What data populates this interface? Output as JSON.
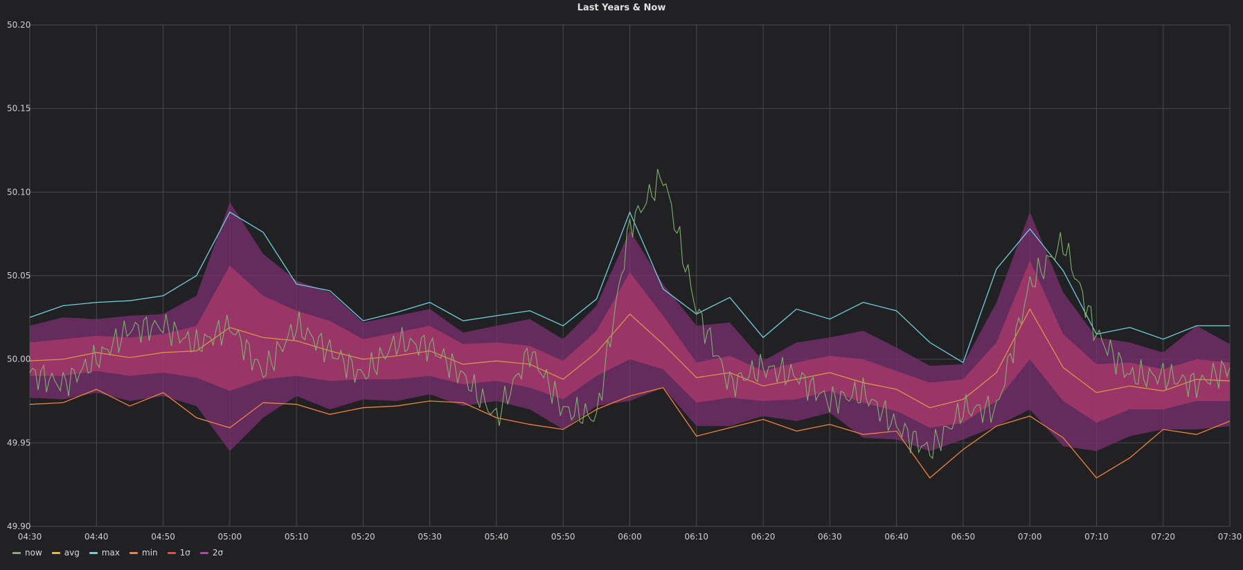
{
  "panel": {
    "title": "Last Years & Now"
  },
  "colors": {
    "background": "#212124",
    "grid": "#4a4a4d",
    "now": "#7eb26d",
    "avg": "#eab839",
    "max": "#6ed0e0",
    "min": "#ef843c",
    "sigma1": "#e24d42",
    "sigma2": "#ba43a9",
    "band2": "#7a3070",
    "band1": "#a8386c",
    "now_overlay": "#b3a3b0"
  },
  "legend": [
    {
      "name": "now",
      "color": "#7eb26d"
    },
    {
      "name": "avg",
      "color": "#eab839"
    },
    {
      "name": "max",
      "color": "#6ed0e0"
    },
    {
      "name": "min",
      "color": "#ef843c"
    },
    {
      "name": "1σ",
      "color": "#e24d42"
    },
    {
      "name": "2σ",
      "color": "#ba43a9"
    }
  ],
  "chart_data": {
    "type": "line",
    "title": "Last Years & Now",
    "xlabel": "",
    "ylabel": "",
    "ylim": [
      49.9,
      50.2
    ],
    "xlim": [
      "04:30",
      "07:30"
    ],
    "y_ticks": [
      "49.90",
      "49.95",
      "50.00",
      "50.05",
      "50.10",
      "50.15",
      "50.20"
    ],
    "x_ticks": [
      "04:30",
      "04:40",
      "04:50",
      "05:00",
      "05:10",
      "05:20",
      "05:30",
      "05:40",
      "05:50",
      "06:00",
      "06:10",
      "06:20",
      "06:30",
      "06:40",
      "06:50",
      "07:00",
      "07:10",
      "07:20",
      "07:30"
    ],
    "grid": true,
    "legend_position": "bottom-left",
    "x": [
      "04:30",
      "04:35",
      "04:40",
      "04:45",
      "04:50",
      "04:55",
      "05:00",
      "05:05",
      "05:10",
      "05:15",
      "05:20",
      "05:25",
      "05:30",
      "05:35",
      "05:40",
      "05:45",
      "05:50",
      "05:55",
      "06:00",
      "06:05",
      "06:10",
      "06:15",
      "06:20",
      "06:25",
      "06:30",
      "06:35",
      "06:40",
      "06:45",
      "06:50",
      "06:55",
      "07:00",
      "07:05",
      "07:10",
      "07:15",
      "07:20",
      "07:25",
      "07:30"
    ],
    "series": [
      {
        "name": "max",
        "values": [
          50.025,
          50.032,
          50.034,
          50.035,
          50.038,
          50.05,
          50.088,
          50.076,
          50.045,
          50.041,
          50.023,
          50.028,
          50.034,
          50.023,
          50.026,
          50.029,
          50.02,
          50.036,
          50.088,
          50.042,
          50.027,
          50.037,
          50.013,
          50.03,
          50.024,
          50.034,
          50.029,
          50.01,
          49.998,
          50.054,
          50.078,
          50.053,
          50.015,
          50.019,
          50.012,
          50.02,
          50.02
        ]
      },
      {
        "name": "avg",
        "values": [
          49.999,
          50.0,
          50.004,
          50.001,
          50.004,
          50.005,
          50.019,
          50.013,
          50.011,
          50.005,
          50.0,
          50.002,
          50.005,
          49.997,
          49.999,
          49.997,
          49.988,
          50.004,
          50.027,
          50.009,
          49.989,
          49.992,
          49.984,
          49.988,
          49.992,
          49.986,
          49.982,
          49.971,
          49.976,
          49.992,
          50.03,
          49.995,
          49.98,
          49.984,
          49.981,
          49.988,
          49.987
        ]
      },
      {
        "name": "min",
        "values": [
          49.973,
          49.974,
          49.982,
          49.972,
          49.98,
          49.965,
          49.959,
          49.974,
          49.973,
          49.967,
          49.971,
          49.972,
          49.975,
          49.974,
          49.965,
          49.961,
          49.958,
          49.97,
          49.978,
          49.983,
          49.954,
          49.959,
          49.964,
          49.957,
          49.961,
          49.955,
          49.957,
          49.929,
          49.946,
          49.96,
          49.966,
          49.953,
          49.929,
          49.941,
          49.958,
          49.955,
          49.963
        ]
      },
      {
        "name": "1σ",
        "values": [
          [
            49.99,
            50.01
          ],
          [
            49.99,
            50.012
          ],
          [
            49.993,
            50.014
          ],
          [
            49.99,
            50.013
          ],
          [
            49.992,
            50.015
          ],
          [
            49.989,
            50.02
          ],
          [
            49.981,
            50.056
          ],
          [
            49.988,
            50.038
          ],
          [
            49.99,
            50.029
          ],
          [
            49.987,
            50.023
          ],
          [
            49.988,
            50.012
          ],
          [
            49.988,
            50.016
          ],
          [
            49.99,
            50.02
          ],
          [
            49.985,
            50.009
          ],
          [
            49.987,
            50.01
          ],
          [
            49.983,
            50.008
          ],
          [
            49.976,
            49.999
          ],
          [
            49.99,
            50.017
          ],
          [
            50.0,
            50.052
          ],
          [
            49.994,
            50.026
          ],
          [
            49.974,
            49.998
          ],
          [
            49.977,
            50.002
          ],
          [
            49.975,
            49.993
          ],
          [
            49.976,
            49.998
          ],
          [
            49.981,
            50.002
          ],
          [
            49.974,
            50.0
          ],
          [
            49.969,
            49.993
          ],
          [
            49.959,
            49.986
          ],
          [
            49.962,
            49.988
          ],
          [
            49.975,
            50.01
          ],
          [
            50.0,
            50.059
          ],
          [
            49.975,
            50.015
          ],
          [
            49.962,
            49.997
          ],
          [
            49.97,
            49.998
          ],
          [
            49.97,
            49.994
          ],
          [
            49.975,
            50.0
          ],
          [
            49.975,
            49.998
          ]
        ]
      },
      {
        "name": "2σ",
        "values": [
          [
            49.977,
            50.02
          ],
          [
            49.976,
            50.025
          ],
          [
            49.98,
            50.024
          ],
          [
            49.975,
            50.026
          ],
          [
            49.978,
            50.027
          ],
          [
            49.972,
            50.038
          ],
          [
            49.945,
            50.094
          ],
          [
            49.965,
            50.063
          ],
          [
            49.978,
            50.047
          ],
          [
            49.97,
            50.04
          ],
          [
            49.976,
            50.022
          ],
          [
            49.975,
            50.026
          ],
          [
            49.979,
            50.03
          ],
          [
            49.972,
            50.016
          ],
          [
            49.975,
            50.02
          ],
          [
            49.97,
            50.024
          ],
          [
            49.958,
            50.012
          ],
          [
            49.972,
            50.032
          ],
          [
            49.975,
            50.077
          ],
          [
            49.983,
            50.045
          ],
          [
            49.96,
            50.02
          ],
          [
            49.96,
            50.022
          ],
          [
            49.966,
            49.999
          ],
          [
            49.963,
            50.01
          ],
          [
            49.968,
            50.013
          ],
          [
            49.953,
            50.017
          ],
          [
            49.952,
            50.007
          ],
          [
            49.945,
            49.996
          ],
          [
            49.952,
            49.997
          ],
          [
            49.96,
            50.034
          ],
          [
            49.97,
            50.088
          ],
          [
            49.948,
            50.04
          ],
          [
            49.945,
            50.013
          ],
          [
            49.954,
            50.01
          ],
          [
            49.958,
            50.004
          ],
          [
            49.958,
            50.02
          ],
          [
            49.96,
            50.009
          ]
        ]
      },
      {
        "name": "now",
        "values": [
          49.992,
          49.985,
          50.0,
          50.018,
          50.02,
          50.008,
          50.02,
          49.992,
          50.02,
          50.005,
          49.99,
          50.01,
          50.008,
          49.99,
          49.965,
          50.005,
          49.97,
          49.965,
          50.08,
          50.11,
          50.03,
          49.985,
          49.995,
          49.99,
          49.975,
          49.98,
          49.96,
          49.945,
          49.97,
          49.97,
          50.045,
          50.07,
          50.015,
          49.99,
          49.99,
          49.985,
          49.995
        ]
      }
    ]
  }
}
